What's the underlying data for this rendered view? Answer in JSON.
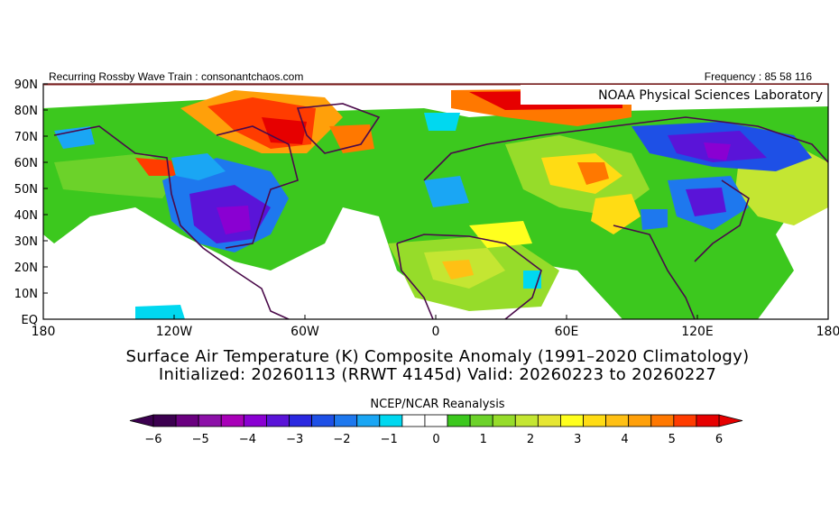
{
  "header": {
    "left_text": "Recurring Rossby Wave Train : consonantchaos.com",
    "right_text": "Frequency : 85 58 116"
  },
  "map": {
    "credit": "NOAA Physical Sciences Laboratory",
    "lat_labels": [
      "90N",
      "80N",
      "70N",
      "60N",
      "50N",
      "40N",
      "30N",
      "20N",
      "10N",
      "EQ"
    ],
    "lon_labels": [
      "180",
      "120W",
      "60W",
      "0",
      "60E",
      "120E",
      "180"
    ]
  },
  "titles": {
    "line1": "Surface Air Temperature (K) Composite Anomaly (1991–2020 Climatology)",
    "line2": "Initialized: 20260113 (RRWT 4145d) Valid: 20260223 to 20260227"
  },
  "colorbar": {
    "title": "NCEP/NCAR Reanalysis",
    "tick_labels": [
      "−6",
      "−5",
      "−4",
      "−3",
      "−2",
      "−1",
      "0",
      "1",
      "2",
      "3",
      "4",
      "5",
      "6"
    ],
    "colors": [
      "#3c0050",
      "#6a0080",
      "#8c10a8",
      "#a800b8",
      "#8a00d2",
      "#5a14d8",
      "#2a28e0",
      "#1e50e6",
      "#1e78ee",
      "#1aa6f4",
      "#00d8f0",
      "#ffffff",
      "#ffffff",
      "#3cc81e",
      "#6cd22a",
      "#96dc2a",
      "#c4e632",
      "#e6e632",
      "#ffff1e",
      "#ffdc14",
      "#ffc014",
      "#ffa00a",
      "#ff7800",
      "#ff3c00",
      "#e60000"
    ],
    "min_color": "#3c0050",
    "max_color": "#e60000"
  }
}
